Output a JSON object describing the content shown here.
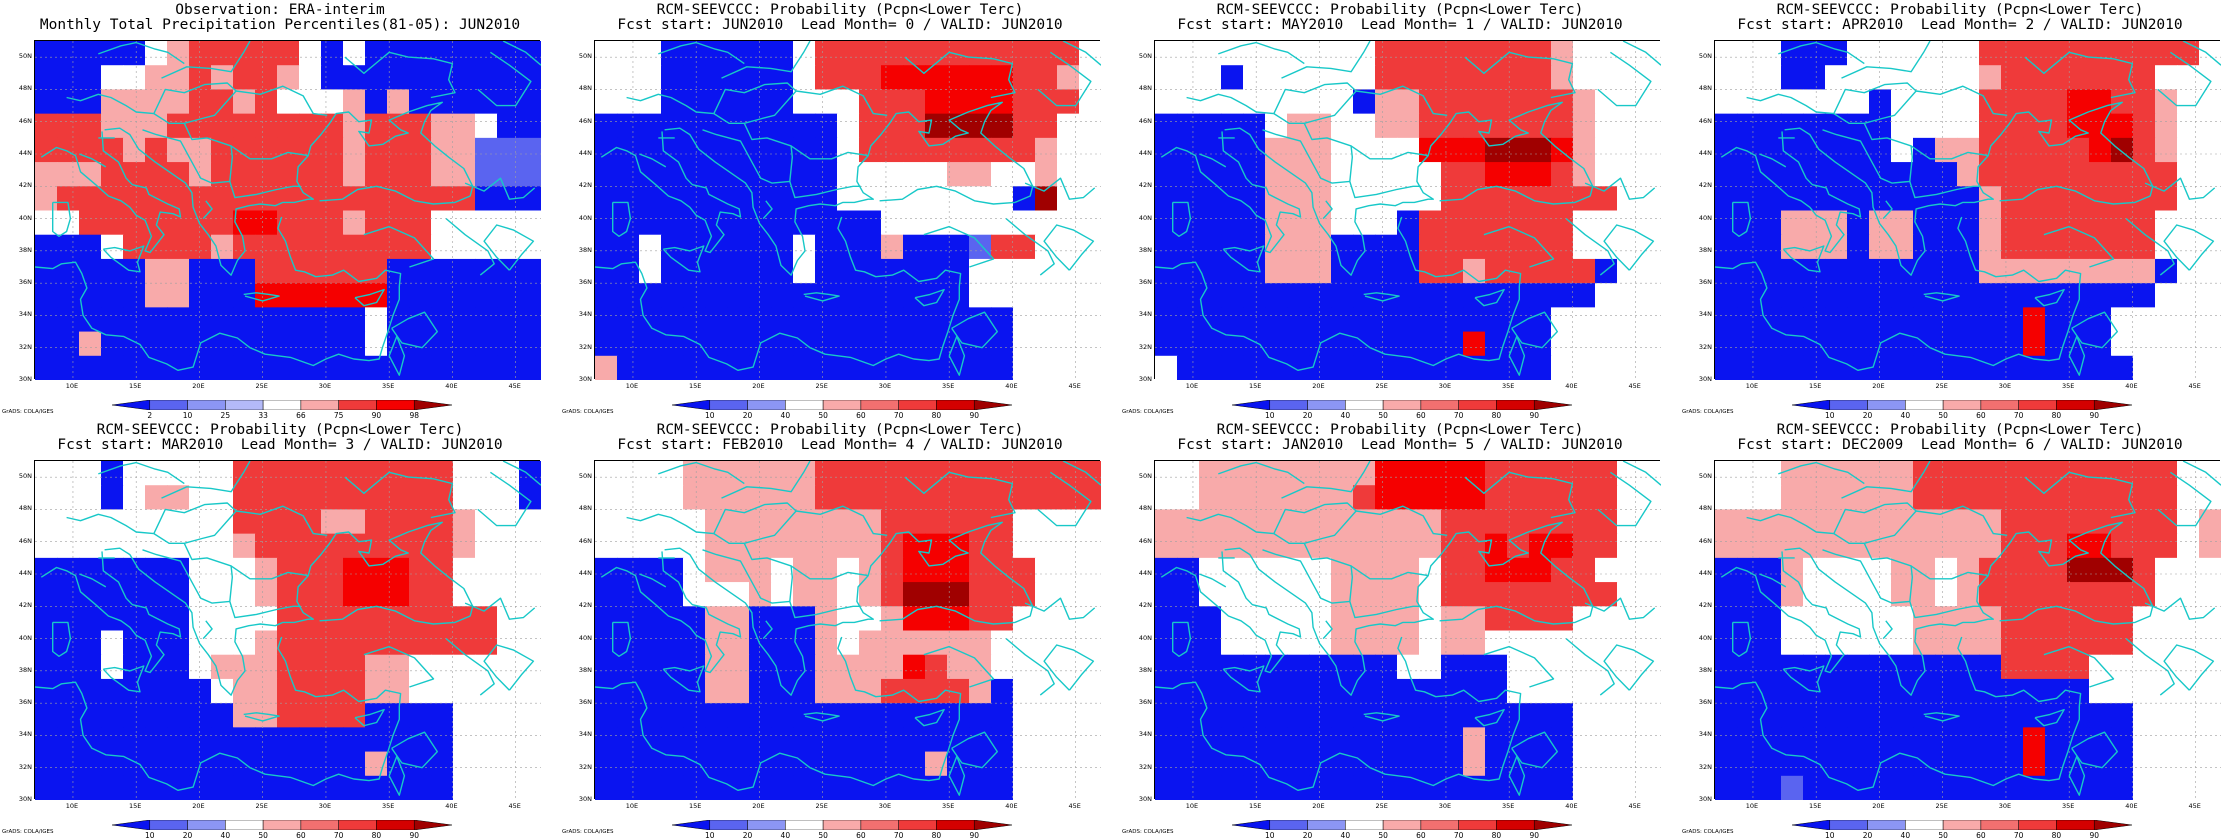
{
  "colors": {
    "blue": "#0a14f0",
    "light_blue_1": "#5a64f0",
    "light_blue_2": "#8c96f5",
    "light_blue_3": "#b4baf8",
    "white": "#ffffff",
    "pink": "#f8aaaa",
    "light_red": "#f27070",
    "red": "#ef3a3a",
    "bright_red": "#f50000",
    "dark_red": "#d40000",
    "darkest_red": "#a00000",
    "coast": "#18c8c8",
    "grid": "#a0a0a0"
  },
  "axes": {
    "lat_labels": [
      "50N",
      "48N",
      "46N",
      "44N",
      "42N",
      "40N",
      "38N",
      "36N",
      "34N",
      "32N",
      "30N"
    ],
    "lon_labels": [
      "10E",
      "15E",
      "20E",
      "25E",
      "30E",
      "35E",
      "40E",
      "45E"
    ],
    "lon_range": [
      7,
      47
    ],
    "lat_range": [
      30,
      51
    ]
  },
  "credit": "GrADS: COLA/IGES",
  "colorbars": {
    "observation": {
      "labels": [
        "2",
        "10",
        "25",
        "33",
        "66",
        "75",
        "90",
        "98"
      ],
      "colors": [
        "#0a14f0",
        "#5a64f0",
        "#8c96f5",
        "#b4baf8",
        "#ffffff",
        "#f8aaaa",
        "#ef3a3a",
        "#f50000",
        "#a00000"
      ]
    },
    "probability": {
      "labels": [
        "10",
        "20",
        "40",
        "50",
        "60",
        "70",
        "80",
        "90"
      ],
      "colors": [
        "#0a14f0",
        "#5a64f0",
        "#8c96f5",
        "#ffffff",
        "#f8aaaa",
        "#f27070",
        "#ef3a3a",
        "#d40000",
        "#a00000"
      ]
    }
  },
  "panels": [
    {
      "title_line1": "Observation: ERA-interim",
      "title_line2": "Monthly Total Precipitation Percentiles(81-05): JUN2010",
      "colorbar": "observation",
      "grid": [
        "BBBBBWPRRRRRWBWBBBBBBBB",
        "BBBWWPPRPRRPWBBBBBBBBBB",
        "BBBPPPPRRPRWWWPBPBBBBBB",
        "RRRPPPRRRRRRRRPRRRPPWBB",
        "RRRRPRPPRRRRRRPRRRPPLLL",
        "PPPRRRRPRRRRRRPRRRPPLLL",
        "PRRRRRRRRRRRRRRRRRRRBBB",
        "WWRRRRRRRQQRRRPRRRWWWWW",
        "BBBWRRRRPRRRRRRRRRWWWWW",
        "BBBBBPPBBBRRRRRRBBBBBBB",
        "BBBBBPPBBBQQQQQQBBBBBBB",
        "BBBBBBBBBBBBBBBWBBBBBBB",
        "BBPBBBBBBBBBBBBWBBBBBBB",
        "BBBBBBBBBBBBBBBBBBBBBBB"
      ]
    },
    {
      "title_line1": "RCM-SEEVCCC: Probability (Pcpn<Lower Terc)",
      "title_line2": "Fcst start: JUN2010  Lead Month= 0 / VALID: JUN2010",
      "colorbar": "probability",
      "grid": [
        "WWWBBBBBBWRRRRRRRRRRRRW",
        "WWWBBBBBBWRRRQQQQQQRRPW",
        "WWWBBBBBBWWWRRRQQQQRRRW",
        "BBBBBBBBBBBWRRRDDDDRRWW",
        "BBBBBBBBBBBWRRRRRRRRPWW",
        "BBBBBBBBBBBWWWWWPPWWPWW",
        "BBBBBBBBBBBWWWWWWWWBDWW",
        "BBBBBBBBBBBBBWWWWWWWWWW",
        "BBWBBBBBBWBBBPBBBLRRWWW",
        "BBWBBBBBBWBBBBBBBWWWWWW",
        "BBBBBBBBBBBBBBBBBWWWWWW",
        "BBBBBBBBBBBBBBBBBBBWWWW",
        "BBBBBBBBBBBBBBBBBBBWWWW",
        "PBBBBBBBBBBBBBBBBBBWWWW"
      ]
    },
    {
      "title_line1": "RCM-SEEVCCC: Probability (Pcpn<Lower Terc)",
      "title_line2": "Fcst start: MAY2010  Lead Month= 1 / VALID: JUN2010",
      "colorbar": "probability",
      "grid": [
        "WWWWWWWWWWRRRRRRRRPWWWW",
        "WWWBWWWWWWRRRRRRRRPWWWW",
        "WWWWWWWWWBPPRRRRRRRPWWW",
        "BBBBBWPPWWPPRRRRRRRPWWW",
        "BBBBBPPPWWWWQQQDDDQPWWW",
        "BBBBBPPPWWWWWRRQQQRPWWW",
        "BBBBBPPPWWWWWRRRRRRRRWW",
        "BBBBBPPPWWWBRRRRRRRWWWW",
        "BBBBBPPPBBBBRRRRRRRWWWW",
        "BBBBBPPPBBBBRRPRRRRRBWW",
        "BBBBBBBBBBBBBBBBBBBBWWW",
        "BBBBBBBBBBBBBBBBBBWWWWW",
        "BBBBBBBBBBBBBBQBBBWWWWW",
        "WBBBBBBBBBBBBBBBBBWWWWW"
      ]
    },
    {
      "title_line1": "RCM-SEEVCCC: Probability (Pcpn<Lower Terc)",
      "title_line2": "Fcst start: APR2010  Lead Month= 2 / VALID: JUN2010",
      "colorbar": "probability",
      "grid": [
        "WWWBBBWWWWWWRRRRRRRRRRW",
        "WWWBBWWWWWWWPRRRRRRRWWW",
        "WWWWWWWBWWWWRRRRQQRRPWW",
        "BBBBBBBBWWWWRRRRQQQRPWW",
        "BBBBBBBBWBPPRRRRRQDRPWW",
        "BBBBBBBBBBBPRRRRRRRRRWW",
        "BBBBBBBBBBBBPRRRRRRRRWW",
        "BBBPPPBPPBBBPRRRRRRRWWW",
        "BBBPPPBPPBBBPRRRRRRRWWW",
        "BBBBBBBBBBBBPPPPPPPPBWW",
        "BBBBBBBBBBBBBBBBBBBBWWW",
        "BBBBBBBBBBBBBBQBBBWWWWW",
        "BBBBBBBBBBBBBBQBBBWWWWW",
        "BBBBBBBBBBBBBBBBBBBWWWW"
      ]
    },
    {
      "title_line1": "RCM-SEEVCCC: Probability (Pcpn<Lower Terc)",
      "title_line2": "Fcst start: MAR2010  Lead Month= 3 / VALID: JUN2010",
      "colorbar": "probability",
      "grid": [
        "WWWBWWWWWRRRRRRRRRRWWWB",
        "WWWBWPPWWRRRRRRRRRRWWWB",
        "WWWWWWWWWRRRRPPRRRRPWWW",
        "WWWWWWWWWPRRRRRRRRRPWWW",
        "BBBBBBBWWWPRRRQQQRRWWWW",
        "BBBBBBBWWWPRRRQQQRRWWWW",
        "BBBBBBBWWWWRRRRRRRRRRWW",
        "BBBWBBBWWWPRRRRRRRRRRWW",
        "BBBWBBBWPPPRRRRPPWWWWWW",
        "BBBBBBBBWPPRRRRPPWWWWWW",
        "BBBBBBBBBPPRRRRBBBBWWWW",
        "BBBBBBBBBBBBBBBBBBBWWWW",
        "BBBBBBBBBBBBBBBPBBBWWWW",
        "BBBBBBBBBBBBBBBBBBBWWWW"
      ]
    },
    {
      "title_line1": "RCM-SEEVCCC: Probability (Pcpn<Lower Terc)",
      "title_line2": "Fcst start: FEB2010  Lead Month= 4 / VALID: JUN2010",
      "colorbar": "probability",
      "grid": [
        "WWWWPPPPPPRRRRRRRRRRRRR",
        "WWWWPPPPPPRRRRRRRRRRRRR",
        "WWWWWPPPPPPPPRRRRRRWWWW",
        "WWWWWPPPPPPPPRQQQRRWWWW",
        "BBBBWPPPWPPWPRQQQRRRWWW",
        "BBBBWWWPWPPWPRDDDRRRWWW",
        "BBBBBPPBBBPWWPQQQRRWWWW",
        "BBBBBPPBBBPWPPPPPPWWWWW",
        "BBBBBPPBBBPPPPQRPPWWWWW",
        "BBBBBPPBBBPPPRRRRPBWWWW",
        "BBBBBBBBBBBBBBBBBBBWWWW",
        "BBBBBBBBBBBBBBBBBBBWWWW",
        "BBBBBBBBBBBBBBBPBBBWWWW",
        "BBBBBBBBBBBBBBBBBBBWWWW"
      ]
    },
    {
      "title_line1": "RCM-SEEVCCC: Probability (Pcpn<Lower Terc)",
      "title_line2": "Fcst start: JAN2010  Lead Month= 5 / VALID: JUN2010",
      "colorbar": "probability",
      "grid": [
        "WWPPPPPPPPQQQQQRRRRRRWW",
        "WWPPPPPPPRQQQQQRRRRRRWW",
        "PPPPPPPPPPPPPRRRRRRRRWW",
        "PPPPPPPPPPPPPRRQRQQRRWW",
        "BBWWWWWWPPPPWRRQQQRRWWW",
        "BBWWWWWWPPPPWRRRRRRRRWW",
        "BBBWWWWWPPPPWPPRRRRWWWW",
        "BBBWWWWWPPPPWPPWWWWWWWW",
        "BBBBBBBBBBBWWBBBWWWWWWW",
        "BBBBBBBBBBBBBBBBWWWWWWW",
        "BBBBBBBBBBBBBBBBBBBWWWW",
        "BBBBBBBBBBBBBBPBBBBWWWW",
        "BBBBBBBBBBBBBBPBBBBWWWW",
        "BBBBBBBBBBBBBBBBBBBWWWW"
      ]
    },
    {
      "title_line1": "RCM-SEEVCCC: Probability (Pcpn<Lower Terc)",
      "title_line2": "Fcst start: DEC2009  Lead Month= 6 / VALID: JUN2010",
      "colorbar": "probability",
      "grid": [
        "WWWPPPPPPRRRRRRRRRRRRWW",
        "WWWPPPPPPRRRRRRRRRRRRWW",
        "PPPPPPPPPPPPPRRRRRRRRWP",
        "PPPPPPPPPPPPPRRRQQRRRWP",
        "BBBPWWWWPPWPRRRRDDDRWWW",
        "BBBPWWWWPPWPRRRRRRRRWWW",
        "BBBWWWWWWPPPPRRRRRRWWWW",
        "BBBWWWWWWPPPPRRRRRRWWWW",
        "BBBBBBBBBBBBBRRRRWWWWWW",
        "BBBBBBBBBBBBBBBBBWWWWWW",
        "BBBBBBBBBBBBBBBBBBBWWWW",
        "BBBBBBBBBBBBBBQBBBBWWWW",
        "BBBBBBBBBBBBBBQBBBBWWWW",
        "BBBLBBBBBBBBBBBBBBBWWWW"
      ]
    }
  ]
}
